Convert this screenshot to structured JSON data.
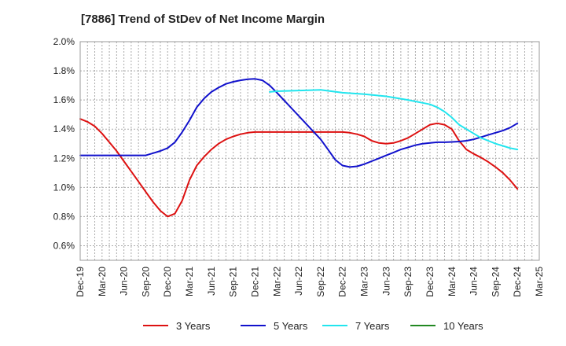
{
  "chart_data": {
    "type": "line",
    "title": "[7886]  Trend of StDev of Net Income Margin",
    "xlabel": "",
    "ylabel": "",
    "ylim": [
      0.5,
      2.0
    ],
    "yticks": [
      "0.6%",
      "0.8%",
      "1.0%",
      "1.2%",
      "1.4%",
      "1.6%",
      "1.8%",
      "2.0%"
    ],
    "xticks": [
      "Dec-19",
      "Mar-20",
      "Jun-20",
      "Sep-20",
      "Dec-20",
      "Mar-21",
      "Jun-21",
      "Sep-21",
      "Dec-21",
      "Mar-22",
      "Jun-22",
      "Sep-22",
      "Dec-22",
      "Mar-23",
      "Jun-23",
      "Sep-23",
      "Dec-23",
      "Mar-24",
      "Jun-24",
      "Sep-24",
      "Dec-24",
      "Mar-25"
    ],
    "grid": true,
    "legend_position": "bottom",
    "series": [
      {
        "name": "3 Years",
        "color": "#dd1111",
        "x": [
          "Dec-19",
          "Jan-20",
          "Feb-20",
          "Mar-20",
          "Apr-20",
          "May-20",
          "Jun-20",
          "Jul-20",
          "Aug-20",
          "Sep-20",
          "Oct-20",
          "Nov-20",
          "Dec-20",
          "Jan-21",
          "Feb-21",
          "Mar-21",
          "Apr-21",
          "May-21",
          "Jun-21",
          "Jul-21",
          "Aug-21",
          "Sep-21",
          "Oct-21",
          "Nov-21",
          "Dec-21",
          "Mar-22",
          "Jun-22",
          "Sep-22",
          "Dec-22",
          "Jan-23",
          "Feb-23",
          "Mar-23",
          "Apr-23",
          "May-23",
          "Jun-23",
          "Jul-23",
          "Aug-23",
          "Sep-23",
          "Oct-23",
          "Nov-23",
          "Dec-23",
          "Jan-24",
          "Feb-24",
          "Mar-24",
          "Apr-24",
          "May-24",
          "Jun-24",
          "Jul-24",
          "Aug-24",
          "Sep-24",
          "Oct-24",
          "Nov-24",
          "Dec-24"
        ],
        "values": [
          1.47,
          1.45,
          1.42,
          1.37,
          1.31,
          1.25,
          1.18,
          1.11,
          1.04,
          0.97,
          0.9,
          0.84,
          0.8,
          0.82,
          0.91,
          1.05,
          1.15,
          1.21,
          1.26,
          1.3,
          1.33,
          1.35,
          1.365,
          1.375,
          1.38,
          1.38,
          1.38,
          1.38,
          1.38,
          1.375,
          1.365,
          1.35,
          1.32,
          1.305,
          1.3,
          1.305,
          1.32,
          1.34,
          1.37,
          1.4,
          1.43,
          1.44,
          1.43,
          1.4,
          1.32,
          1.26,
          1.23,
          1.205,
          1.175,
          1.14,
          1.1,
          1.05,
          0.99
        ]
      },
      {
        "name": "5 Years",
        "color": "#1111cc",
        "x": [
          "Dec-19",
          "Mar-20",
          "Jun-20",
          "Sep-20",
          "Oct-20",
          "Nov-20",
          "Dec-20",
          "Jan-21",
          "Feb-21",
          "Mar-21",
          "Apr-21",
          "May-21",
          "Jun-21",
          "Jul-21",
          "Aug-21",
          "Sep-21",
          "Oct-21",
          "Nov-21",
          "Dec-21",
          "Jan-22",
          "Feb-22",
          "Mar-22",
          "Jun-22",
          "Sep-22",
          "Oct-22",
          "Nov-22",
          "Dec-22",
          "Jan-23",
          "Feb-23",
          "Mar-23",
          "Apr-23",
          "May-23",
          "Jun-23",
          "Jul-23",
          "Aug-23",
          "Sep-23",
          "Oct-23",
          "Nov-23",
          "Dec-23",
          "Jan-24",
          "Feb-24",
          "Mar-24",
          "Apr-24",
          "May-24",
          "Jun-24",
          "Jul-24",
          "Aug-24",
          "Sep-24",
          "Oct-24",
          "Nov-24",
          "Dec-24"
        ],
        "values": [
          1.22,
          1.22,
          1.22,
          1.22,
          1.235,
          1.25,
          1.27,
          1.31,
          1.38,
          1.46,
          1.55,
          1.61,
          1.655,
          1.685,
          1.71,
          1.725,
          1.735,
          1.742,
          1.745,
          1.735,
          1.7,
          1.65,
          1.49,
          1.33,
          1.26,
          1.19,
          1.15,
          1.14,
          1.145,
          1.16,
          1.18,
          1.2,
          1.22,
          1.24,
          1.26,
          1.275,
          1.29,
          1.3,
          1.305,
          1.31,
          1.31,
          1.312,
          1.315,
          1.32,
          1.33,
          1.345,
          1.36,
          1.375,
          1.39,
          1.41,
          1.44
        ]
      },
      {
        "name": "7 Years",
        "color": "#22e5ee",
        "x": [
          "Feb-22",
          "Mar-22",
          "Jun-22",
          "Sep-22",
          "Dec-22",
          "Mar-23",
          "Jun-23",
          "Sep-23",
          "Oct-23",
          "Nov-23",
          "Dec-23",
          "Jan-24",
          "Feb-24",
          "Mar-24",
          "Apr-24",
          "May-24",
          "Jun-24",
          "Jul-24",
          "Aug-24",
          "Sep-24",
          "Oct-24",
          "Nov-24",
          "Dec-24"
        ],
        "values": [
          1.655,
          1.66,
          1.665,
          1.67,
          1.65,
          1.64,
          1.625,
          1.6,
          1.59,
          1.58,
          1.57,
          1.55,
          1.52,
          1.48,
          1.43,
          1.4,
          1.37,
          1.34,
          1.32,
          1.3,
          1.285,
          1.27,
          1.26
        ]
      },
      {
        "name": "10 Years",
        "color": "#228822",
        "x": [],
        "values": []
      }
    ]
  }
}
